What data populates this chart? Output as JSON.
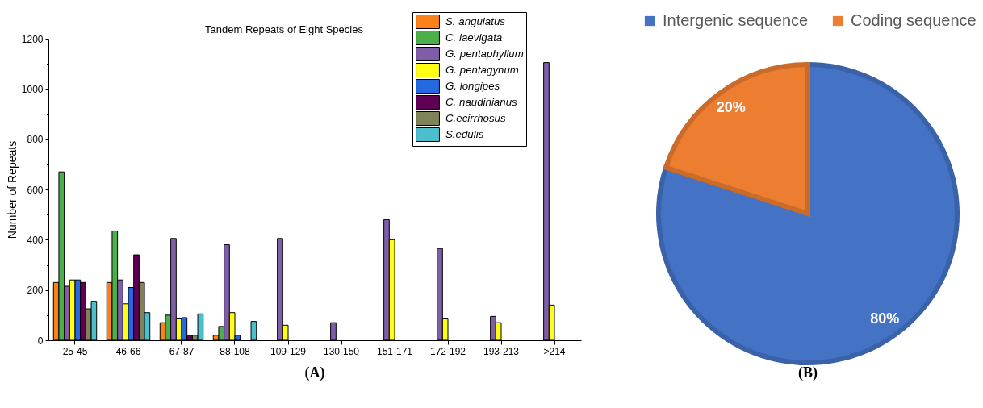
{
  "chart_data": [
    {
      "type": "bar",
      "title": "Tandem Repeats of Eight Species",
      "ylabel": "Number of Repeats",
      "categories": [
        "25-45",
        "46-66",
        "67-87",
        "88-108",
        "109-129",
        "130-150",
        "151-171",
        "172-192",
        "193-213",
        ">214"
      ],
      "series": [
        {
          "name": "S. angulatus",
          "color": "#fb8118",
          "values": [
            230,
            230,
            70,
            20,
            null,
            null,
            null,
            null,
            null,
            null
          ]
        },
        {
          "name": "C. laevigata",
          "color": "#4cb04a",
          "values": [
            670,
            435,
            100,
            55,
            null,
            null,
            null,
            null,
            null,
            null
          ]
        },
        {
          "name": "G. pentaphyllum",
          "color": "#7f5ea8",
          "values": [
            215,
            240,
            405,
            380,
            405,
            70,
            480,
            365,
            95,
            1105
          ]
        },
        {
          "name": "G. pentagynum",
          "color": "#ffff14",
          "values": [
            240,
            145,
            85,
            110,
            60,
            null,
            400,
            85,
            70,
            140
          ]
        },
        {
          "name": "G. longipes",
          "color": "#2468e2",
          "values": [
            240,
            210,
            90,
            20,
            null,
            null,
            null,
            null,
            null,
            null
          ]
        },
        {
          "name": "C. naudinianus",
          "color": "#600055",
          "values": [
            230,
            340,
            20,
            null,
            null,
            null,
            null,
            null,
            null,
            null
          ]
        },
        {
          "name": "C.ecirrhosus",
          "color": "#7f8357",
          "values": [
            125,
            230,
            20,
            null,
            null,
            null,
            null,
            null,
            null,
            null
          ]
        },
        {
          "name": "S.edulis",
          "color": "#4bbfce",
          "values": [
            155,
            110,
            105,
            75,
            null,
            null,
            null,
            null,
            null,
            null
          ]
        }
      ],
      "ylim": [
        0,
        1200
      ],
      "yticks": [
        0,
        {
          "value": 100,
          "label": null
        },
        200,
        {
          "value": 300,
          "label": null
        },
        400,
        {
          "value": 500,
          "label": null
        },
        600,
        {
          "value": 700,
          "label": null
        },
        800,
        {
          "value": 900,
          "label": null
        },
        1000,
        {
          "value": 1100,
          "label": null
        },
        1200
      ],
      "legend": "top right",
      "annotations": [
        "(A)"
      ]
    },
    {
      "type": "pie",
      "categories": [
        "Intergenic sequence",
        "Coding sequence"
      ],
      "values": [
        80,
        20
      ],
      "colors": [
        "#4472c4",
        "#ed7d31"
      ],
      "value_labels": [
        "80%",
        "20%"
      ],
      "legend": "top",
      "annotations": [
        "(B)"
      ]
    }
  ]
}
